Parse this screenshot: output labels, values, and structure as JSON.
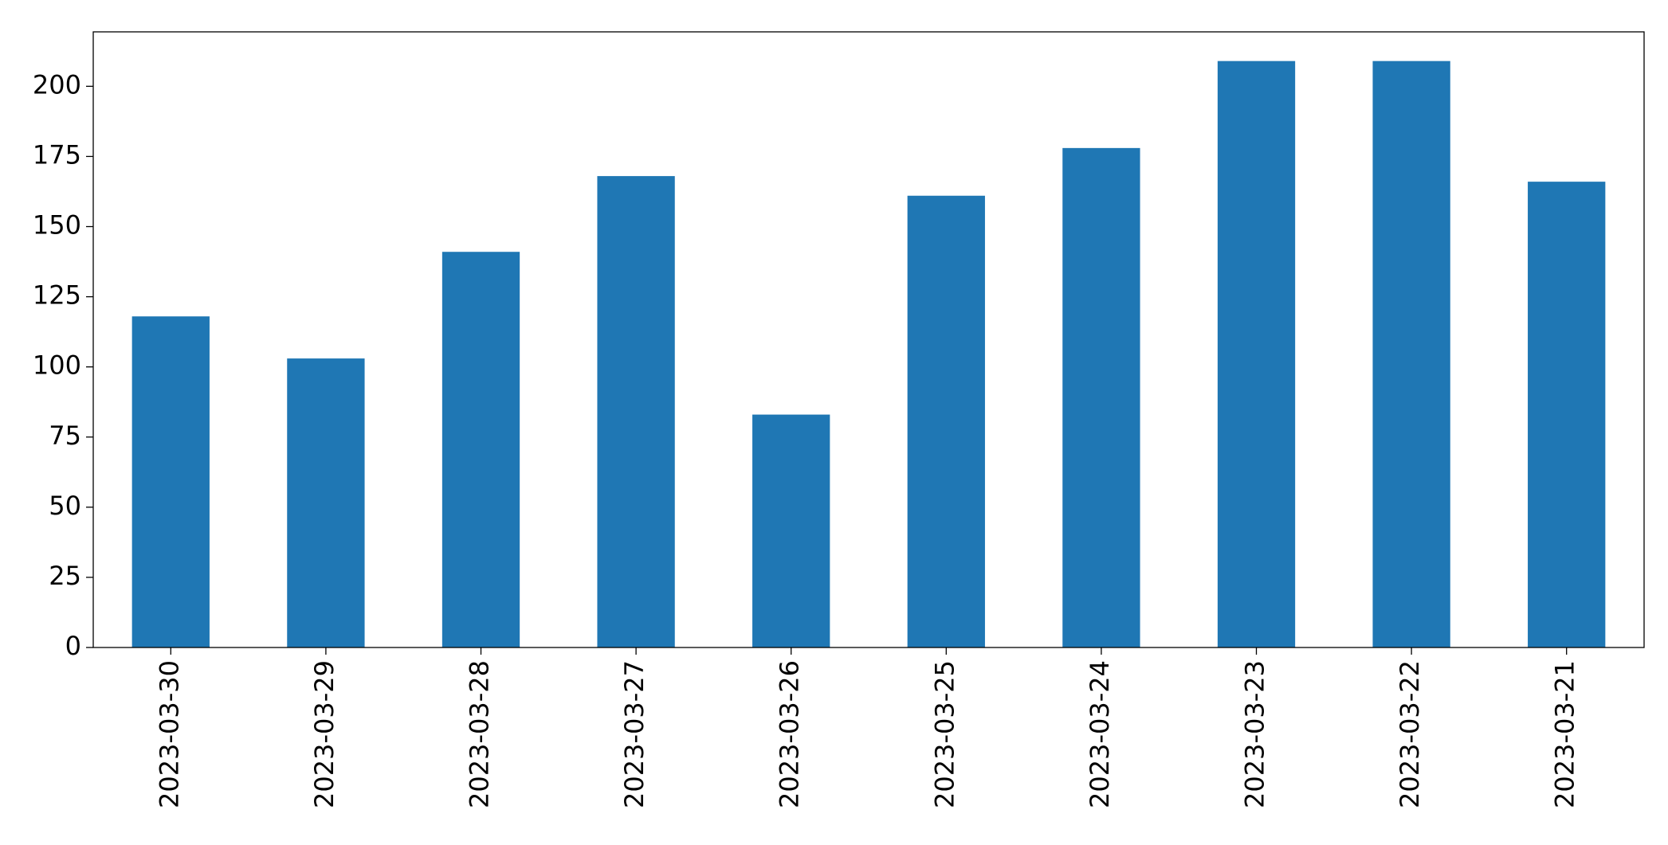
{
  "chart_data": {
    "type": "bar",
    "categories": [
      "2023-03-30",
      "2023-03-29",
      "2023-03-28",
      "2023-03-27",
      "2023-03-26",
      "2023-03-25",
      "2023-03-24",
      "2023-03-23",
      "2023-03-22",
      "2023-03-21"
    ],
    "values": [
      118,
      103,
      141,
      168,
      83,
      161,
      178,
      209,
      209,
      166
    ],
    "color": "#1f77b4",
    "ylim": [
      0,
      219.4
    ],
    "yticks": [
      0,
      25,
      50,
      75,
      100,
      125,
      150,
      175,
      200
    ],
    "grid": false
  }
}
